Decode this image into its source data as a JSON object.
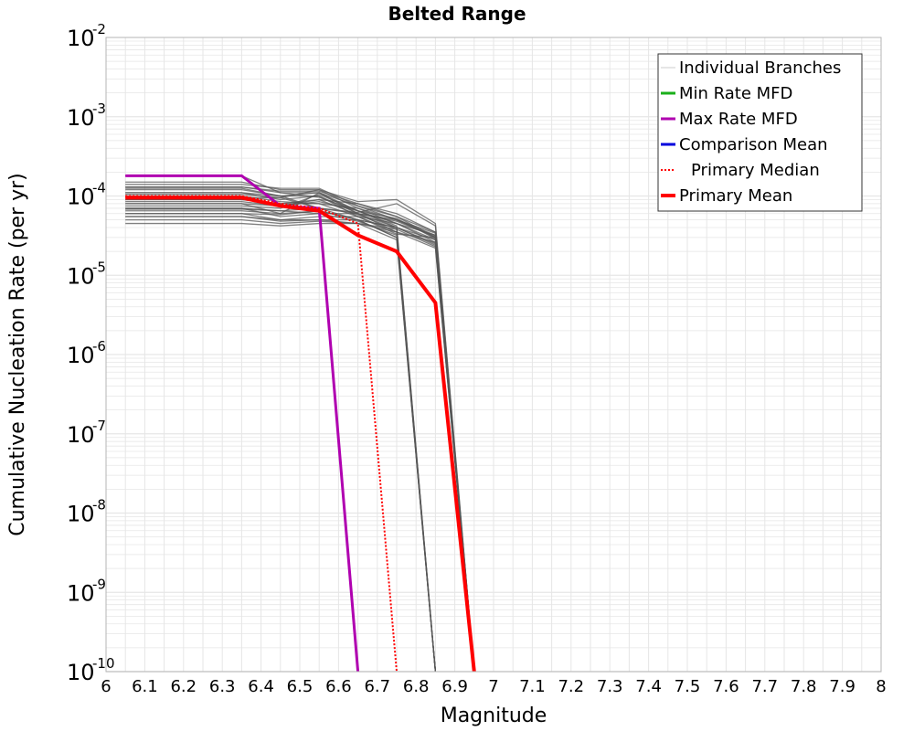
{
  "colors": {
    "branch": "#555555",
    "min_rate": "#1aaf1a",
    "max_rate": "#b000b0",
    "comparison_mean": "#0000dd",
    "primary_median": "#ff0000",
    "primary_mean": "#ff0000",
    "grid": "#e6e6e6",
    "frame": "#b4b4b4"
  },
  "chart_data": {
    "type": "line",
    "title": "Belted Range",
    "xlabel": "Magnitude",
    "ylabel": "Cumulative Nucleation Rate (per yr)",
    "xlim": [
      6,
      8
    ],
    "ylim": [
      1e-10,
      0.01
    ],
    "yscale": "log",
    "grid": true,
    "legend_position": "top-right",
    "x_ticks": [
      "6",
      "6.1",
      "6.2",
      "6.3",
      "6.4",
      "6.5",
      "6.6",
      "6.7",
      "6.8",
      "6.9",
      "7",
      "7.1",
      "7.2",
      "7.3",
      "7.4",
      "7.5",
      "7.6",
      "7.7",
      "7.8",
      "7.9",
      "8"
    ],
    "y_ticks": [
      {
        "base": "10",
        "exp": "-10",
        "value": 1e-10
      },
      {
        "base": "10",
        "exp": "-9",
        "value": 1e-09
      },
      {
        "base": "10",
        "exp": "-8",
        "value": 1e-08
      },
      {
        "base": "10",
        "exp": "-7",
        "value": 1e-07
      },
      {
        "base": "10",
        "exp": "-6",
        "value": 1e-06
      },
      {
        "base": "10",
        "exp": "-5",
        "value": 1e-05
      },
      {
        "base": "10",
        "exp": "-4",
        "value": 0.0001
      },
      {
        "base": "10",
        "exp": "-3",
        "value": 0.001
      },
      {
        "base": "10",
        "exp": "-2",
        "value": 0.01
      }
    ],
    "legend": [
      {
        "label": "Individual Branches",
        "color": "#cccccc",
        "style": "thin"
      },
      {
        "label": "Min Rate MFD",
        "color": "#1aaf1a",
        "style": "solid"
      },
      {
        "label": "Max Rate MFD",
        "color": "#b000b0",
        "style": "solid"
      },
      {
        "label": "Comparison Mean",
        "color": "#0000dd",
        "style": "solid"
      },
      {
        "label": "Primary Median",
        "color": "#ff0000",
        "style": "dotted"
      },
      {
        "label": "Primary Mean",
        "color": "#ff0000",
        "style": "thick"
      }
    ],
    "branch_series": [
      {
        "x": [
          6.05,
          6.15,
          6.25,
          6.35,
          6.45,
          6.55,
          6.65,
          6.75,
          6.85,
          6.95
        ],
        "y": [
          0.00018,
          0.00018,
          0.00018,
          0.00018,
          0.00011,
          9.6e-05,
          6.5e-05,
          4e-05,
          2.8e-05,
          1e-10
        ]
      },
      {
        "x": [
          6.05,
          6.15,
          6.25,
          6.35,
          6.45,
          6.55,
          6.65,
          6.75,
          6.85,
          6.95
        ],
        "y": [
          0.00015,
          0.00015,
          0.00015,
          0.00015,
          0.00012,
          0.00012,
          7e-05,
          4.5e-05,
          3.2e-05,
          1e-10
        ]
      },
      {
        "x": [
          6.05,
          6.15,
          6.25,
          6.35,
          6.45,
          6.55,
          6.65,
          6.75,
          6.85,
          6.95
        ],
        "y": [
          0.000125,
          0.000125,
          0.000125,
          0.000125,
          0.0001,
          0.00011,
          6e-05,
          3.5e-05,
          2.6e-05,
          1e-10
        ]
      },
      {
        "x": [
          6.05,
          6.15,
          6.25,
          6.35,
          6.45,
          6.55,
          6.65,
          6.75,
          6.85,
          6.95
        ],
        "y": [
          0.00011,
          0.00011,
          0.00011,
          0.00011,
          9e-05,
          0.0001,
          5.5e-05,
          3.3e-05,
          3e-05,
          1e-10
        ]
      },
      {
        "x": [
          6.05,
          6.15,
          6.25,
          6.35,
          6.45,
          6.55,
          6.65,
          6.75,
          6.85,
          6.95
        ],
        "y": [
          9e-05,
          9e-05,
          9e-05,
          9e-05,
          8e-05,
          9e-05,
          8e-05,
          6e-05,
          3.5e-05,
          1e-10
        ]
      },
      {
        "x": [
          6.05,
          6.15,
          6.25,
          6.35,
          6.45,
          6.55,
          6.65,
          6.75,
          6.85,
          6.95
        ],
        "y": [
          8e-05,
          8e-05,
          8e-05,
          8e-05,
          6e-05,
          6.5e-05,
          5e-05,
          4e-05,
          2.5e-05,
          1e-10
        ]
      },
      {
        "x": [
          6.05,
          6.15,
          6.25,
          6.35,
          6.45,
          6.55,
          6.65,
          6.75,
          6.85,
          6.95
        ],
        "y": [
          7e-05,
          7e-05,
          7e-05,
          7e-05,
          5.5e-05,
          6e-05,
          6e-05,
          5e-05,
          3e-05,
          1e-10
        ]
      },
      {
        "x": [
          6.05,
          6.15,
          6.25,
          6.35,
          6.45,
          6.55,
          6.65,
          6.75,
          6.85,
          6.95
        ],
        "y": [
          6e-05,
          6e-05,
          6e-05,
          6e-05,
          5e-05,
          5.5e-05,
          5.5e-05,
          4.5e-05,
          2.8e-05,
          1e-10
        ]
      },
      {
        "x": [
          6.05,
          6.15,
          6.25,
          6.35,
          6.45,
          6.55,
          6.65,
          6.75,
          6.85,
          6.95
        ],
        "y": [
          5.5e-05,
          5.5e-05,
          5.5e-05,
          5.5e-05,
          4.8e-05,
          5e-05,
          5e-05,
          4e-05,
          2.4e-05,
          1e-10
        ]
      },
      {
        "x": [
          6.05,
          6.15,
          6.25,
          6.35,
          6.45,
          6.55,
          6.65,
          6.75,
          6.85,
          6.95
        ],
        "y": [
          5e-05,
          5e-05,
          5e-05,
          5e-05,
          4.5e-05,
          4.8e-05,
          4.5e-05,
          3.8e-05,
          2.3e-05,
          1e-10
        ]
      },
      {
        "x": [
          6.05,
          6.15,
          6.25,
          6.35,
          6.45,
          6.55,
          6.65,
          6.75,
          6.85,
          6.95
        ],
        "y": [
          0.00013,
          0.00013,
          0.00013,
          0.00013,
          0.000115,
          0.000115,
          8e-05,
          5.5e-05,
          3.5e-05,
          1e-10
        ]
      },
      {
        "x": [
          6.05,
          6.15,
          6.25,
          6.35,
          6.45,
          6.55,
          6.65,
          6.75,
          6.85,
          6.95
        ],
        "y": [
          0.0001,
          0.0001,
          0.0001,
          0.0001,
          8.5e-05,
          8e-05,
          7e-05,
          5e-05,
          3.2e-05,
          1e-10
        ]
      },
      {
        "x": [
          6.05,
          6.15,
          6.25,
          6.35,
          6.45,
          6.55,
          6.65,
          6.75,
          6.85,
          6.95
        ],
        "y": [
          7.5e-05,
          7.5e-05,
          7.5e-05,
          7.5e-05,
          7e-05,
          0.000105,
          6.5e-05,
          4.5e-05,
          2.6e-05,
          1e-10
        ]
      },
      {
        "x": [
          6.05,
          6.15,
          6.25,
          6.35,
          6.45,
          6.55,
          6.65,
          6.75,
          6.85,
          6.95
        ],
        "y": [
          6.5e-05,
          6.5e-05,
          6.5e-05,
          6.5e-05,
          6e-05,
          0.00011,
          7.5e-05,
          5.5e-05,
          3e-05,
          1e-10
        ]
      },
      {
        "x": [
          6.05,
          6.15,
          6.25,
          6.35,
          6.45,
          6.55,
          6.65,
          6.75,
          6.85,
          6.95
        ],
        "y": [
          0.00014,
          0.00014,
          0.00014,
          0.00014,
          0.000125,
          0.000125,
          7.5e-05,
          5e-05,
          3.4e-05,
          1e-10
        ]
      },
      {
        "x": [
          6.05,
          6.15,
          6.25,
          6.35,
          6.45,
          6.55,
          6.65,
          6.75,
          6.85,
          6.95
        ],
        "y": [
          9.5e-05,
          9.5e-05,
          9.5e-05,
          9.5e-05,
          9.5e-05,
          7e-05,
          6e-05,
          4.8e-05,
          3.1e-05,
          1e-10
        ]
      },
      {
        "x": [
          6.05,
          6.15,
          6.25,
          6.35,
          6.45,
          6.55,
          6.65,
          6.75,
          6.85,
          6.95
        ],
        "y": [
          8.5e-05,
          8.5e-05,
          8.5e-05,
          8.5e-05,
          7.5e-05,
          8.5e-05,
          6.5e-05,
          5.2e-05,
          2.9e-05,
          1e-10
        ]
      },
      {
        "x": [
          6.05,
          6.15,
          6.25,
          6.35,
          6.45,
          6.55,
          6.65,
          6.75,
          6.85,
          6.95
        ],
        "y": [
          4.5e-05,
          4.5e-05,
          4.5e-05,
          4.5e-05,
          4.2e-05,
          4.5e-05,
          4.5e-05,
          3.5e-05,
          2.2e-05,
          1e-10
        ]
      },
      {
        "x": [
          6.05,
          6.15,
          6.25,
          6.35,
          6.45,
          6.55,
          6.65,
          6.75,
          6.85,
          6.95
        ],
        "y": [
          0.000105,
          0.000105,
          0.000105,
          0.000105,
          9.5e-05,
          0.00012,
          8.5e-05,
          9e-05,
          4.5e-05,
          1e-10
        ]
      },
      {
        "x": [
          6.05,
          6.15,
          6.25,
          6.35,
          6.45,
          6.55,
          6.65,
          6.75,
          6.85,
          6.95
        ],
        "y": [
          6.8e-05,
          6.8e-05,
          6.8e-05,
          6.8e-05,
          6.5e-05,
          7e-05,
          6.2e-05,
          8e-05,
          4.2e-05,
          1e-10
        ]
      },
      {
        "x": [
          6.05,
          6.15,
          6.25,
          6.35,
          6.45,
          6.55,
          6.65,
          6.75,
          6.85
        ],
        "y": [
          0.00012,
          0.00012,
          0.00012,
          0.00012,
          0.0001,
          7e-05,
          5e-05,
          3e-05,
          1e-10
        ]
      },
      {
        "x": [
          6.05,
          6.15,
          6.25,
          6.35,
          6.45,
          6.55,
          6.65,
          6.75,
          6.85
        ],
        "y": [
          9e-05,
          9e-05,
          9e-05,
          9e-05,
          8e-05,
          8e-05,
          5.5e-05,
          3.5e-05,
          1e-10
        ]
      },
      {
        "x": [
          6.05,
          6.15,
          6.25,
          6.35,
          6.45,
          6.55,
          6.65,
          6.75,
          6.85
        ],
        "y": [
          7e-05,
          7e-05,
          7e-05,
          7e-05,
          6.5e-05,
          6e-05,
          4.8e-05,
          3.2e-05,
          1e-10
        ]
      },
      {
        "x": [
          6.05,
          6.15,
          6.25,
          6.35,
          6.45,
          6.55,
          6.65,
          6.75,
          6.85
        ],
        "y": [
          5.5e-05,
          5.5e-05,
          5.5e-05,
          5.5e-05,
          5e-05,
          5e-05,
          4.5e-05,
          2.8e-05,
          1e-10
        ]
      },
      {
        "x": [
          6.05,
          6.15,
          6.25,
          6.35,
          6.45,
          6.55,
          6.65,
          6.75,
          6.85
        ],
        "y": [
          0.00011,
          0.00011,
          0.00011,
          0.00011,
          0.0001,
          0.0001,
          6e-05,
          4e-05,
          1e-10
        ]
      },
      {
        "x": [
          6.05,
          6.15,
          6.25,
          6.35,
          6.45,
          6.55,
          6.65,
          6.75,
          6.85
        ],
        "y": [
          8e-05,
          8e-05,
          8e-05,
          8e-05,
          7.5e-05,
          9e-05,
          5.8e-05,
          3.8e-05,
          1e-10
        ]
      },
      {
        "x": [
          6.05,
          6.15,
          6.25,
          6.35,
          6.45,
          6.55,
          6.65,
          6.75,
          6.85
        ],
        "y": [
          6e-05,
          6e-05,
          6e-05,
          6e-05,
          5.8e-05,
          6.5e-05,
          5e-05,
          3e-05,
          1e-10
        ]
      },
      {
        "x": [
          6.05,
          6.15,
          6.25,
          6.35,
          6.45,
          6.55,
          6.65,
          6.75,
          6.85
        ],
        "y": [
          0.00013,
          0.00013,
          0.00013,
          0.00013,
          0.00011,
          0.00011,
          6.5e-05,
          4.2e-05,
          1e-10
        ]
      }
    ],
    "series": [
      {
        "name": "Max Rate MFD",
        "color": "#b000b0",
        "style": "solid",
        "x": [
          6.05,
          6.15,
          6.25,
          6.35,
          6.45,
          6.55,
          6.65
        ],
        "y": [
          0.00018,
          0.00018,
          0.00018,
          0.00018,
          7.5e-05,
          7e-05,
          1e-10
        ]
      },
      {
        "name": "Primary Median",
        "color": "#ff0000",
        "style": "dotted",
        "x": [
          6.05,
          6.15,
          6.25,
          6.35,
          6.45,
          6.55,
          6.65,
          6.75
        ],
        "y": [
          0.0001,
          0.0001,
          0.0001,
          0.0001,
          8e-05,
          7e-05,
          4.5e-05,
          1e-10
        ]
      },
      {
        "name": "Primary Mean",
        "color": "#ff0000",
        "style": "thick",
        "x": [
          6.05,
          6.15,
          6.25,
          6.35,
          6.45,
          6.55,
          6.65,
          6.75,
          6.85,
          6.95
        ],
        "y": [
          9.5e-05,
          9.5e-05,
          9.5e-05,
          9.5e-05,
          7.5e-05,
          6.5e-05,
          3.2e-05,
          2e-05,
          4.5e-06,
          1e-10
        ]
      }
    ]
  }
}
